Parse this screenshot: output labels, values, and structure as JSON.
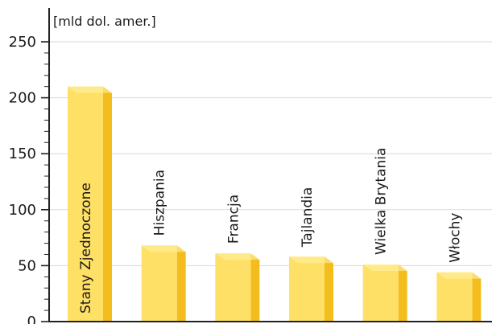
{
  "chart_data": {
    "type": "bar",
    "ylabel": "[mld dol. amer.]",
    "categories": [
      "Stany Zjednoczone",
      "Hiszpania",
      "Francja",
      "Tajlandia",
      "Wielka Brytania",
      "Włochy"
    ],
    "values": [
      210,
      68,
      61,
      58,
      51,
      44
    ],
    "ylim": [
      0,
      250
    ],
    "yticks": [
      0,
      50,
      100,
      150,
      200,
      250
    ],
    "grid": true,
    "colors": {
      "bar_front": "#ffe066",
      "bar_side": "#f2bd1d",
      "bar_top": "#fff0a0",
      "grid": "#d9d9d9",
      "axis": "#222222"
    }
  }
}
